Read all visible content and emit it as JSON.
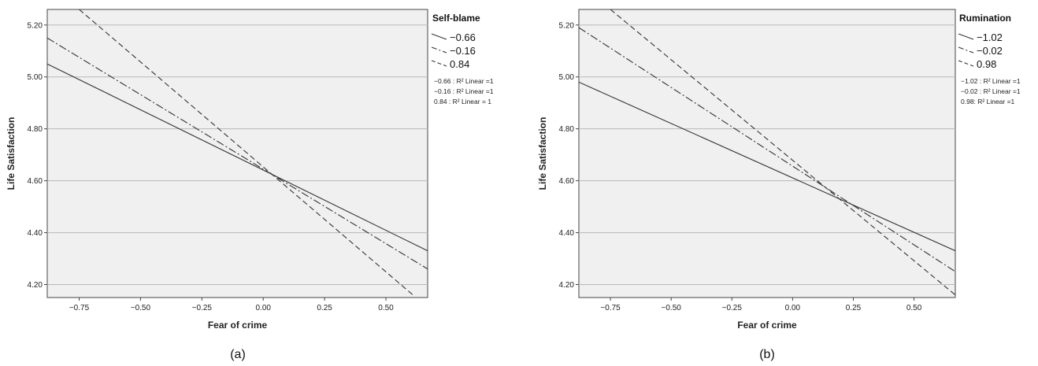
{
  "chart_data": [
    {
      "panel_label": "a",
      "type": "line",
      "xlabel": "Fear of crime",
      "ylabel": "Life Satisfaction",
      "xlim": [
        -0.88,
        0.67
      ],
      "ylim": [
        4.15,
        5.26
      ],
      "x_ticks": [
        -0.75,
        -0.5,
        -0.25,
        0.0,
        0.25,
        0.5
      ],
      "x_tick_labels": [
        "−0.75",
        "−0.50",
        "−0.25",
        "0.00",
        "0.25",
        "0.50"
      ],
      "y_ticks": [
        4.2,
        4.4,
        4.6,
        4.8,
        5.0,
        5.2
      ],
      "y_tick_labels": [
        "4.20",
        "4.40",
        "4.60",
        "4.80",
        "5.00",
        "5.20"
      ],
      "grid": "horizontal",
      "legend_title": "Self-blame",
      "legend_placement": "right",
      "series": [
        {
          "name": "−0.66",
          "style": "solid",
          "x": [
            -0.88,
            0.67
          ],
          "y": [
            5.05,
            4.33
          ]
        },
        {
          "name": "−0.16",
          "style": "dashdot",
          "x": [
            -0.88,
            0.67
          ],
          "y": [
            5.15,
            4.26
          ]
        },
        {
          "name": "0.84",
          "style": "dashed",
          "x": [
            -0.75,
            0.61
          ],
          "y": [
            5.26,
            4.16
          ]
        }
      ],
      "r2_labels": [
        "−0.66 : R² Linear =1",
        "−0.16 : R² Linear =1",
        "0.84 : R² Linear = 1"
      ]
    },
    {
      "panel_label": "b",
      "type": "line",
      "xlabel": "Fear of crime",
      "ylabel": "Life Satisfaction",
      "xlim": [
        -0.88,
        0.67
      ],
      "ylim": [
        4.15,
        5.26
      ],
      "x_ticks": [
        -0.75,
        -0.5,
        -0.25,
        0.0,
        0.25,
        0.5
      ],
      "x_tick_labels": [
        "−0.75",
        "−0.50",
        "−0.25",
        "0.00",
        "0.25",
        "0.50"
      ],
      "y_ticks": [
        4.2,
        4.4,
        4.6,
        4.8,
        5.0,
        5.2
      ],
      "y_tick_labels": [
        "4.20",
        "4.40",
        "4.60",
        "4.80",
        "5.00",
        "5.20"
      ],
      "grid": "horizontal",
      "legend_title": "Rumination",
      "legend_placement": "right",
      "series": [
        {
          "name": "−1.02",
          "style": "solid",
          "x": [
            -0.88,
            0.67
          ],
          "y": [
            4.98,
            4.33
          ]
        },
        {
          "name": "−0.02",
          "style": "dashdot",
          "x": [
            -0.88,
            0.67
          ],
          "y": [
            5.19,
            4.25
          ]
        },
        {
          "name": "0.98",
          "style": "dashed",
          "x": [
            -0.75,
            0.67
          ],
          "y": [
            5.26,
            4.16
          ]
        }
      ],
      "r2_labels": [
        "−1.02 : R² Linear =1",
        "−0.02 : R² Linear =1",
        "0.98: R² Linear =1"
      ]
    }
  ],
  "captions": [
    "(a)",
    "(b)"
  ]
}
